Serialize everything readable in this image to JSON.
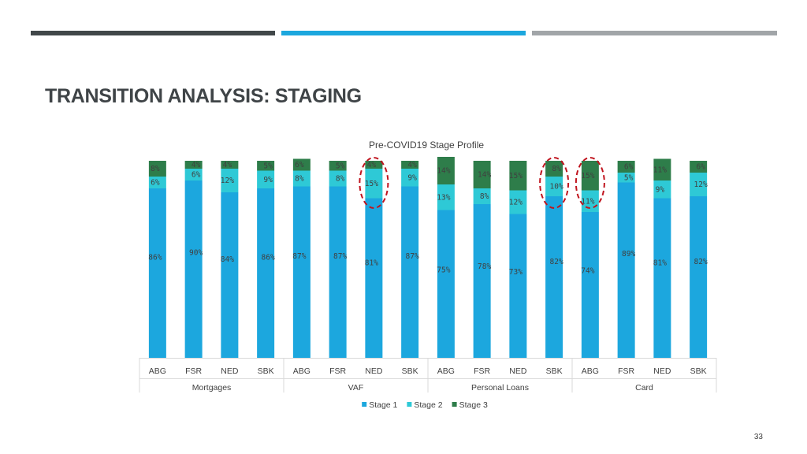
{
  "slide": {
    "title": "TRANSITION ANALYSIS: STAGING",
    "page_number": "33",
    "colors": {
      "bar_dark": "#414749",
      "bar_blue": "#1ca7de",
      "bar_grey": "#a1a5a8"
    }
  },
  "chart_data": {
    "type": "bar",
    "stacked": true,
    "title": "Pre-COVID19 Stage Profile",
    "xlabel": "",
    "ylabel": "",
    "ylim": [
      0,
      100
    ],
    "unit": "%",
    "grid": false,
    "legend_position": "bottom",
    "categories": [
      "ABG",
      "FSR",
      "NED",
      "SBK",
      "ABG",
      "FSR",
      "NED",
      "SBK",
      "ABG",
      "FSR",
      "NED",
      "SBK",
      "ABG",
      "FSR",
      "NED",
      "SBK"
    ],
    "groups": [
      {
        "label": "Mortgages",
        "start": 0,
        "end": 3
      },
      {
        "label": "VAF",
        "start": 4,
        "end": 7
      },
      {
        "label": "Personal Loans",
        "start": 8,
        "end": 11
      },
      {
        "label": "Card",
        "start": 12,
        "end": 15
      }
    ],
    "series": [
      {
        "name": "Stage 1",
        "color": "#1ca7de",
        "values": [
          86,
          90,
          84,
          86,
          87,
          87,
          81,
          87,
          75,
          78,
          73,
          82,
          74,
          89,
          81,
          82
        ]
      },
      {
        "name": "Stage 2",
        "color": "#2ec9d6",
        "values": [
          6,
          6,
          12,
          9,
          8,
          8,
          15,
          9,
          13,
          8,
          12,
          10,
          11,
          5,
          9,
          12
        ]
      },
      {
        "name": "Stage 3",
        "color": "#2e7d4a",
        "values": [
          8,
          4,
          4,
          5,
          6,
          5,
          4,
          4,
          14,
          14,
          15,
          8,
          15,
          6,
          11,
          6
        ]
      }
    ],
    "highlighted_categories": [
      6,
      11,
      12
    ],
    "highlight_color": "#c0141e"
  }
}
